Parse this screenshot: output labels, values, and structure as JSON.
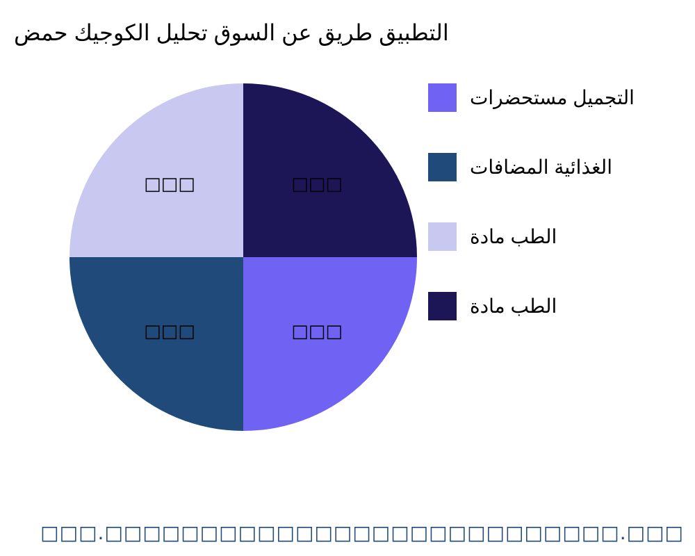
{
  "chart_data": {
    "type": "pie",
    "title": "حمض الكوجيك تحليل السوق عن طريق التطبيق",
    "categories": [
      "مستحضرات التجميل",
      "المضافات الغذائية",
      "مادة الطب",
      "مادة الطب"
    ],
    "values": [
      25,
      25,
      25,
      25
    ],
    "colors": [
      "#7062f3",
      "#1f4a7a",
      "#c8c8f0",
      "#1c1657"
    ],
    "data_labels": [
      "□□□",
      "□□□",
      "□□□",
      "□□□"
    ],
    "legend_placement": "right",
    "start_angle_deg": 90,
    "direction": "clockwise"
  },
  "footer": "□□□.□□□□□□□□□□□□□□□□□□□□□□□□□□□.□□□"
}
